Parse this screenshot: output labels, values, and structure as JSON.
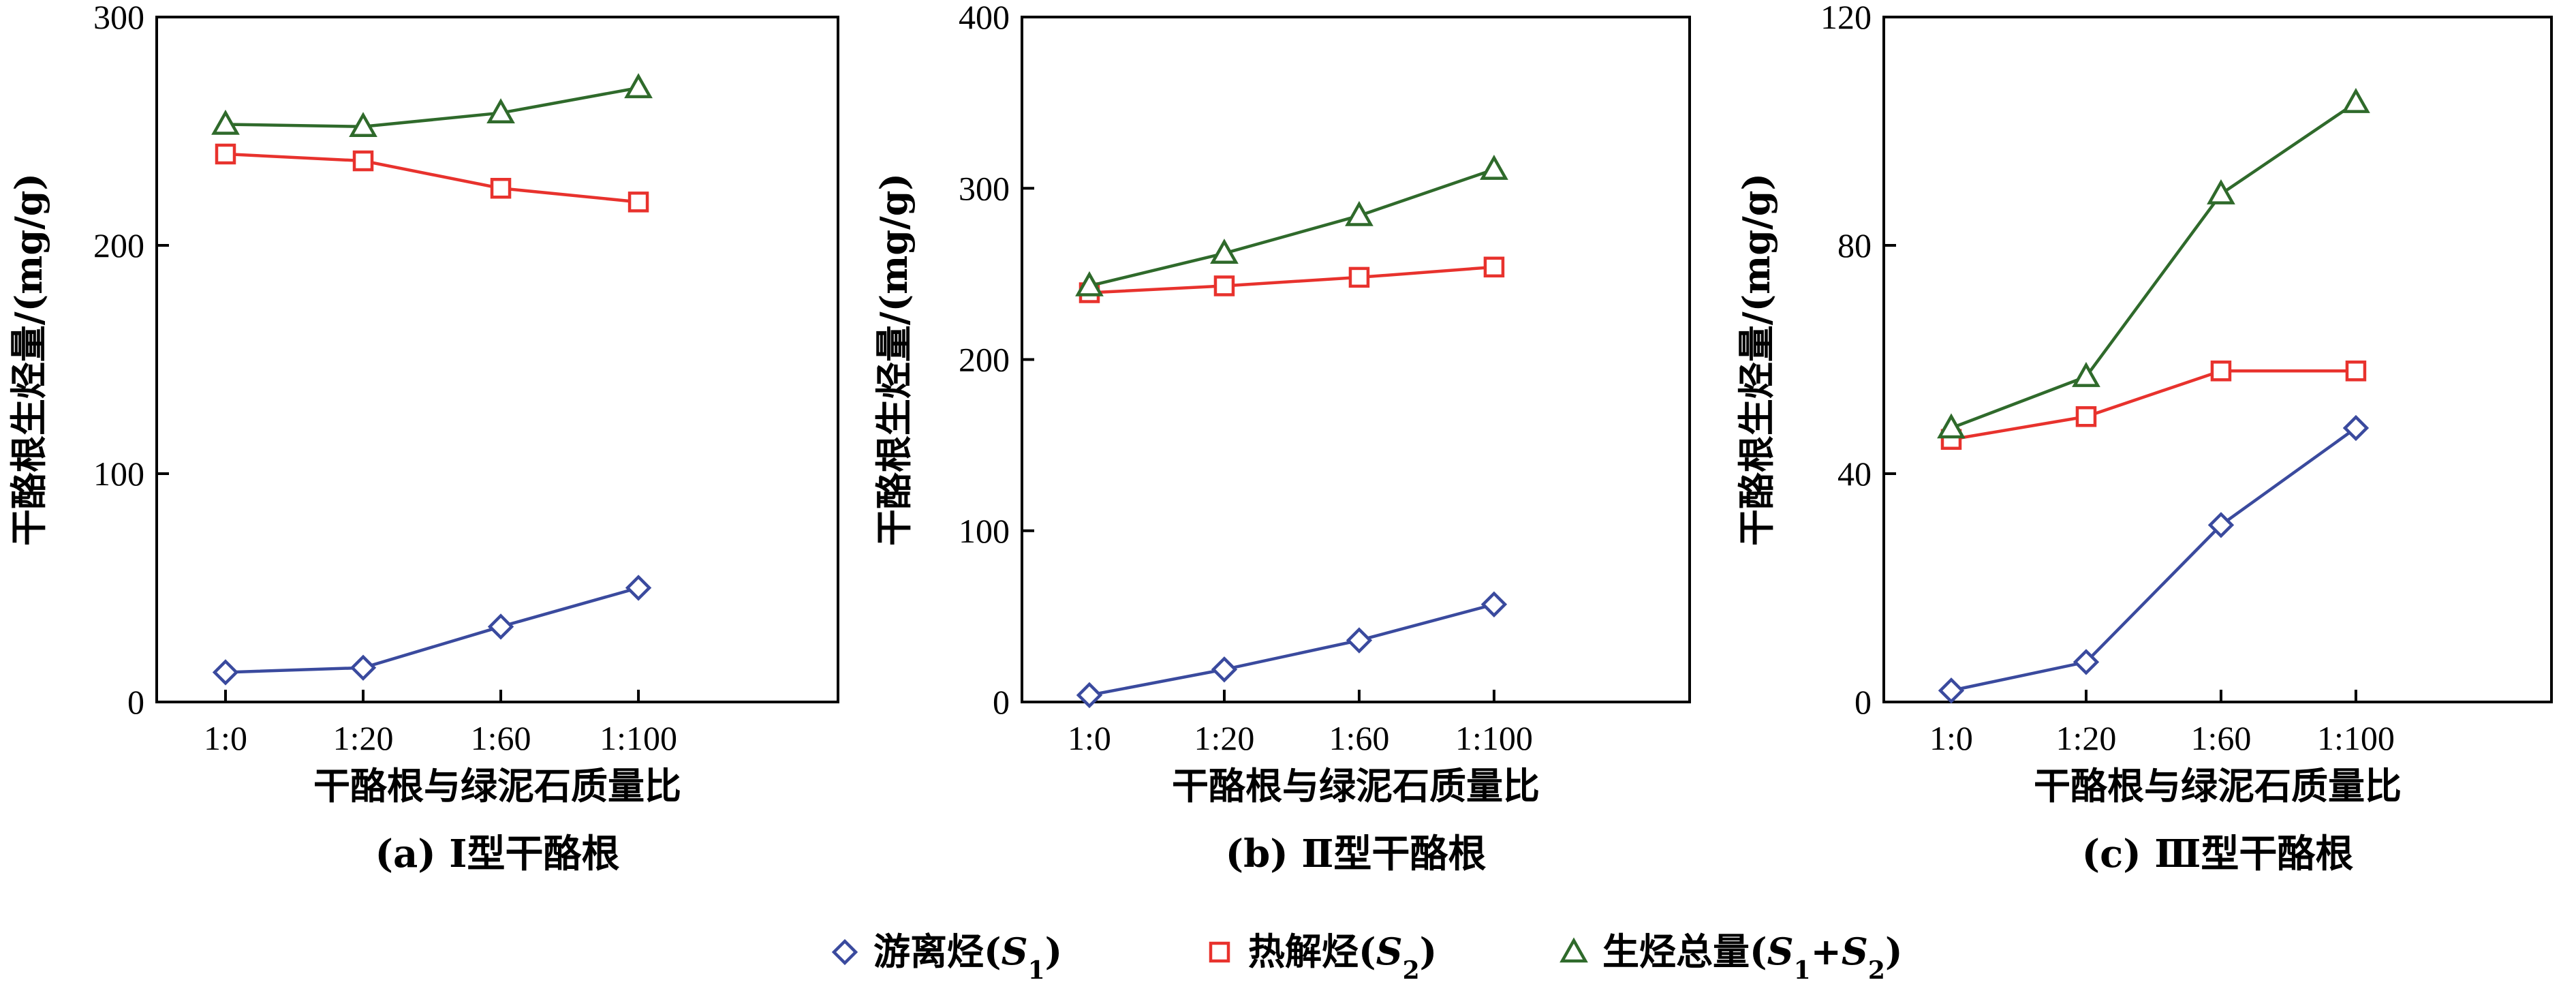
{
  "chart_data": [
    {
      "type": "line",
      "categories": [
        "1:0",
        "1:20",
        "1:60",
        "1:100"
      ],
      "ylim": [
        0,
        300
      ],
      "yticks": [
        "0",
        "100",
        "200",
        "300"
      ],
      "xlabel": "干酪根与绿泥石质量比",
      "ylabel": "干酪根生烃量/(mg/g)",
      "caption": "(a) Ⅰ型干酪根",
      "series": [
        {
          "name": "游离烃(S1)",
          "marker": "diamond",
          "values": [
            13,
            15,
            33,
            50
          ]
        },
        {
          "name": "热解烃(S2)",
          "marker": "square",
          "values": [
            240,
            237,
            225,
            219
          ]
        },
        {
          "name": "生烃总量(S1+S2)",
          "marker": "triangle",
          "values": [
            253,
            252,
            258,
            269
          ]
        }
      ]
    },
    {
      "type": "line",
      "categories": [
        "1:0",
        "1:20",
        "1:60",
        "1:100"
      ],
      "ylim": [
        0,
        400
      ],
      "yticks": [
        "0",
        "100",
        "200",
        "300",
        "400"
      ],
      "xlabel": "干酪根与绿泥石质量比",
      "ylabel": "干酪根生烃量/(mg/g)",
      "caption": "(b) Ⅱ型干酪根",
      "series": [
        {
          "name": "游离烃(S1)",
          "marker": "diamond",
          "values": [
            4,
            19,
            36,
            57
          ]
        },
        {
          "name": "热解烃(S2)",
          "marker": "square",
          "values": [
            239,
            243,
            248,
            254
          ]
        },
        {
          "name": "生烃总量(S1+S2)",
          "marker": "triangle",
          "values": [
            243,
            262,
            284,
            311
          ]
        }
      ]
    },
    {
      "type": "line",
      "categories": [
        "1:0",
        "1:20",
        "1:60",
        "1:100"
      ],
      "ylim": [
        0,
        120
      ],
      "yticks": [
        "0",
        "40",
        "80",
        "120"
      ],
      "xlabel": "干酪根与绿泥石质量比",
      "ylabel": "干酪根生烃量/(mg/g)",
      "caption": "(c) Ⅲ型干酪根",
      "series": [
        {
          "name": "游离烃(S1)",
          "marker": "diamond",
          "values": [
            2,
            7,
            31,
            48
          ]
        },
        {
          "name": "热解烃(S2)",
          "marker": "square",
          "values": [
            46,
            50,
            58,
            58
          ]
        },
        {
          "name": "生烃总量(S1+S2)",
          "marker": "triangle",
          "values": [
            48,
            57,
            89,
            105
          ]
        }
      ]
    }
  ],
  "legend": {
    "placement": "bottom-center",
    "items": [
      {
        "marker": "diamond",
        "label": "游离烃",
        "paren_open": "(",
        "sym": "S",
        "sub": "1",
        "paren_close": ")"
      },
      {
        "marker": "square",
        "label": "热解烃",
        "paren_open": "(",
        "sym": "S",
        "sub": "2",
        "paren_close": ")"
      },
      {
        "marker": "triangle",
        "label": "生烃总量",
        "paren_open": "(",
        "sym": "S",
        "sub": "1",
        "plus": "+",
        "sym2": "S",
        "sub2": "2",
        "paren_close": ")"
      }
    ]
  },
  "colors": {
    "diamond": "#3a4a9e",
    "square": "#e8322d",
    "triangle": "#2f6a2b",
    "axis": "#000000"
  }
}
